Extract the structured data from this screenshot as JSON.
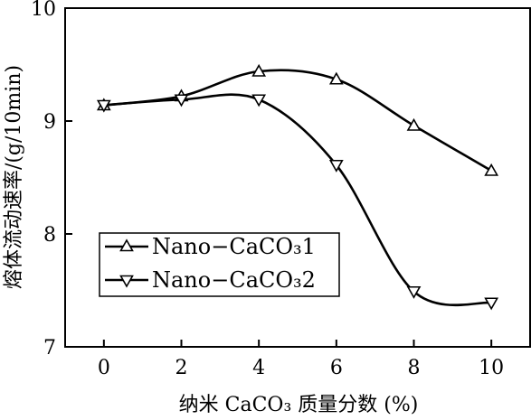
{
  "chart_data": {
    "type": "line",
    "title": "",
    "xlabel": "纳米 CaCO₃ 质量分数 (%)",
    "ylabel": "熔体流动速率/(g/10min)",
    "xlim": [
      -1,
      11
    ],
    "ylim": [
      7,
      10
    ],
    "x_ticks": [
      0,
      2,
      4,
      6,
      8,
      10
    ],
    "y_ticks": [
      7,
      8,
      9,
      10
    ],
    "grid": false,
    "legend_position": "lower-left",
    "series": [
      {
        "name": "Nano−CaCO₃1",
        "marker": "triangle-up",
        "x": [
          0,
          2,
          4,
          6,
          8,
          10
        ],
        "y": [
          9.14,
          9.22,
          9.44,
          9.37,
          8.96,
          8.56
        ]
      },
      {
        "name": "Nano−CaCO₃2",
        "marker": "triangle-down",
        "x": [
          0,
          2,
          4,
          6,
          8,
          10
        ],
        "y": [
          9.14,
          9.19,
          9.19,
          8.61,
          7.49,
          7.39
        ]
      }
    ]
  }
}
